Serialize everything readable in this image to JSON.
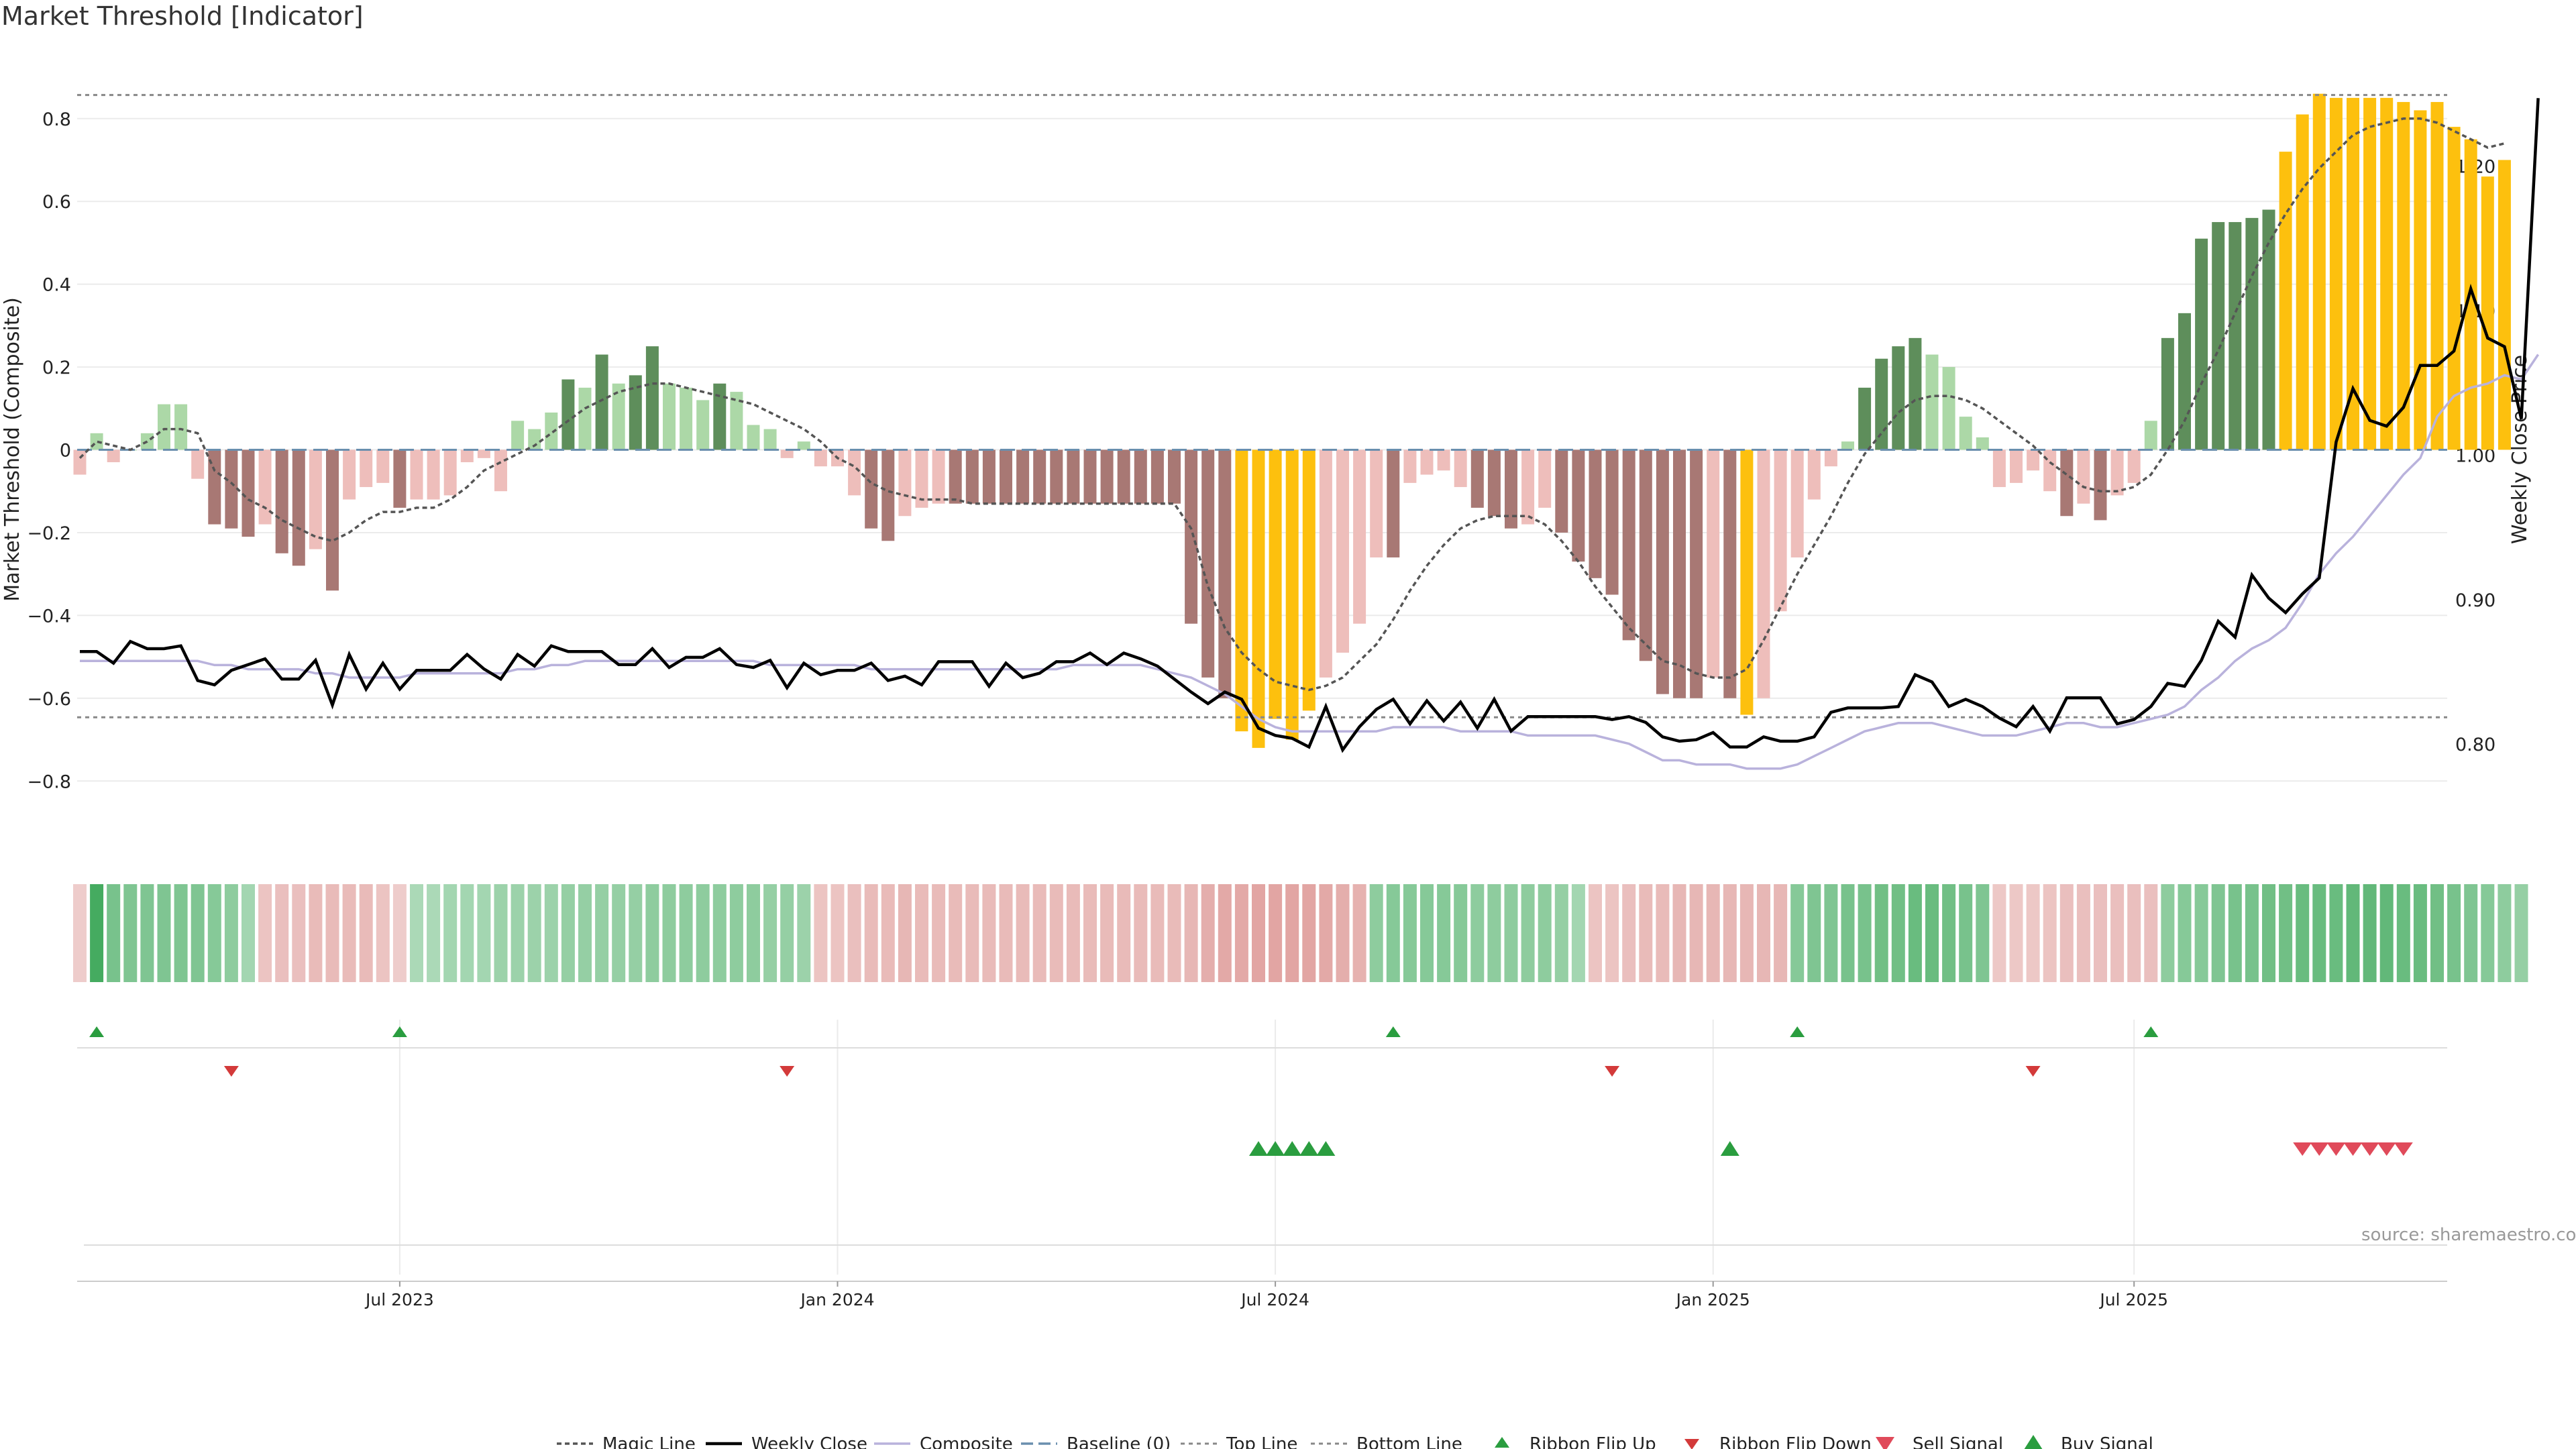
{
  "chart_data": {
    "type": "bar",
    "title": "Market Threshold [Indicator]",
    "ylabel": "Market Threshold (Composite)",
    "y2label": "Weekly Close Price",
    "ylim": [
      -0.96,
      0.96
    ],
    "y2lim": [
      0.7286,
      1.2787
    ],
    "yticks": [
      0.8,
      0.6,
      0.4,
      0.2,
      0,
      -0.2,
      -0.4,
      -0.6,
      -0.8
    ],
    "ytick_labels": [
      "0.8",
      "0.6",
      "0.4",
      "0.2",
      "0",
      "−0.2",
      "−0.4",
      "−0.6",
      "−0.8"
    ],
    "y2ticks": [
      1.2,
      1.1,
      1.0,
      0.9,
      0.8
    ],
    "y2tick_labels": [
      "1.20",
      "1.10",
      "1.00",
      "0.90",
      "0.80"
    ],
    "xtick_labels": [
      "Jul 2023",
      "Jan 2024",
      "Jul 2024",
      "Jan 2025",
      "Jul 2025"
    ],
    "xtick_week_index": [
      19,
      45,
      71,
      97,
      122
    ],
    "weeks": 143,
    "top_line": 0.857,
    "bottom_line": -0.646,
    "source": "source: sharemaestro.com",
    "composite_bars": [
      -0.06,
      0.04,
      -0.03,
      0.0,
      0.04,
      0.11,
      0.11,
      -0.07,
      -0.18,
      -0.19,
      -0.21,
      -0.18,
      -0.25,
      -0.28,
      -0.24,
      -0.34,
      -0.12,
      -0.09,
      -0.08,
      -0.14,
      -0.12,
      -0.12,
      -0.11,
      -0.03,
      -0.02,
      -0.1,
      0.07,
      0.05,
      0.09,
      0.17,
      0.15,
      0.23,
      0.16,
      0.18,
      0.25,
      0.16,
      0.15,
      0.12,
      0.16,
      0.14,
      0.06,
      0.05,
      -0.02,
      0.02,
      -0.04,
      -0.04,
      -0.11,
      -0.19,
      -0.22,
      -0.16,
      -0.14,
      -0.13,
      -0.13,
      -0.13,
      -0.13,
      -0.13,
      -0.13,
      -0.13,
      -0.13,
      -0.13,
      -0.13,
      -0.13,
      -0.13,
      -0.13,
      -0.13,
      -0.13,
      -0.42,
      -0.55,
      -0.6,
      -0.68,
      -0.72,
      -0.65,
      -0.7,
      -0.63,
      -0.55,
      -0.49,
      -0.42,
      -0.26,
      -0.26,
      -0.08,
      -0.06,
      -0.05,
      -0.09,
      -0.14,
      -0.16,
      -0.19,
      -0.18,
      -0.14,
      -0.2,
      -0.27,
      -0.31,
      -0.35,
      -0.46,
      -0.51,
      -0.59,
      -0.6,
      -0.6,
      -0.55,
      -0.6,
      -0.64,
      -0.6,
      -0.39,
      -0.26,
      -0.12,
      -0.04,
      0.02,
      0.15,
      0.22,
      0.25,
      0.27,
      0.23,
      0.2,
      0.08,
      0.03,
      -0.09,
      -0.08,
      -0.05,
      -0.1,
      -0.16,
      -0.13,
      -0.17,
      -0.11,
      -0.08,
      0.07,
      0.27,
      0.33,
      0.51,
      0.55,
      0.55,
      0.56,
      0.58,
      0.72,
      0.81,
      0.86,
      0.85,
      0.85,
      0.85,
      0.85,
      0.84,
      0.82,
      0.84,
      0.78,
      0.75,
      0.66,
      0.7
    ],
    "magic_line": [
      -0.02,
      0.02,
      0.01,
      0.0,
      0.02,
      0.05,
      0.05,
      0.04,
      -0.05,
      -0.08,
      -0.12,
      -0.14,
      -0.17,
      -0.19,
      -0.21,
      -0.22,
      -0.2,
      -0.17,
      -0.15,
      -0.15,
      -0.14,
      -0.14,
      -0.12,
      -0.09,
      -0.05,
      -0.03,
      -0.01,
      0.01,
      0.04,
      0.07,
      0.1,
      0.12,
      0.14,
      0.15,
      0.16,
      0.16,
      0.15,
      0.14,
      0.13,
      0.12,
      0.11,
      0.09,
      0.07,
      0.05,
      0.02,
      -0.02,
      -0.04,
      -0.08,
      -0.1,
      -0.11,
      -0.12,
      -0.12,
      -0.12,
      -0.13,
      -0.13,
      -0.13,
      -0.13,
      -0.13,
      -0.13,
      -0.13,
      -0.13,
      -0.13,
      -0.13,
      -0.13,
      -0.13,
      -0.13,
      -0.19,
      -0.33,
      -0.43,
      -0.49,
      -0.53,
      -0.56,
      -0.57,
      -0.58,
      -0.57,
      -0.55,
      -0.51,
      -0.47,
      -0.41,
      -0.34,
      -0.28,
      -0.23,
      -0.19,
      -0.17,
      -0.16,
      -0.16,
      -0.16,
      -0.18,
      -0.22,
      -0.27,
      -0.33,
      -0.38,
      -0.43,
      -0.47,
      -0.51,
      -0.52,
      -0.54,
      -0.55,
      -0.55,
      -0.53,
      -0.46,
      -0.38,
      -0.3,
      -0.23,
      -0.16,
      -0.08,
      -0.01,
      0.04,
      0.09,
      0.12,
      0.13,
      0.13,
      0.12,
      0.1,
      0.07,
      0.04,
      0.01,
      -0.03,
      -0.06,
      -0.09,
      -0.1,
      -0.1,
      -0.09,
      -0.06,
      0.0,
      0.07,
      0.16,
      0.24,
      0.33,
      0.42,
      0.5,
      0.57,
      0.63,
      0.68,
      0.72,
      0.76,
      0.78,
      0.79,
      0.8,
      0.8,
      0.79,
      0.77,
      0.75,
      0.73,
      0.74
    ],
    "composite_line": [
      -0.51,
      -0.51,
      -0.51,
      -0.51,
      -0.51,
      -0.51,
      -0.51,
      -0.51,
      -0.52,
      -0.52,
      -0.53,
      -0.53,
      -0.53,
      -0.53,
      -0.54,
      -0.54,
      -0.55,
      -0.55,
      -0.55,
      -0.55,
      -0.54,
      -0.54,
      -0.54,
      -0.54,
      -0.54,
      -0.54,
      -0.53,
      -0.53,
      -0.52,
      -0.52,
      -0.51,
      -0.51,
      -0.51,
      -0.51,
      -0.51,
      -0.51,
      -0.51,
      -0.51,
      -0.51,
      -0.51,
      -0.51,
      -0.52,
      -0.52,
      -0.52,
      -0.52,
      -0.52,
      -0.52,
      -0.53,
      -0.53,
      -0.53,
      -0.53,
      -0.53,
      -0.53,
      -0.53,
      -0.53,
      -0.53,
      -0.53,
      -0.53,
      -0.53,
      -0.52,
      -0.52,
      -0.52,
      -0.52,
      -0.52,
      -0.53,
      -0.54,
      -0.55,
      -0.57,
      -0.59,
      -0.62,
      -0.65,
      -0.67,
      -0.68,
      -0.68,
      -0.68,
      -0.68,
      -0.68,
      -0.68,
      -0.67,
      -0.67,
      -0.67,
      -0.67,
      -0.68,
      -0.68,
      -0.68,
      -0.68,
      -0.69,
      -0.69,
      -0.69,
      -0.69,
      -0.69,
      -0.7,
      -0.71,
      -0.73,
      -0.75,
      -0.75,
      -0.76,
      -0.76,
      -0.76,
      -0.77,
      -0.77,
      -0.77,
      -0.76,
      -0.74,
      -0.72,
      -0.7,
      -0.68,
      -0.67,
      -0.66,
      -0.66,
      -0.66,
      -0.67,
      -0.68,
      -0.69,
      -0.69,
      -0.69,
      -0.68,
      -0.67,
      -0.66,
      -0.66,
      -0.67,
      -0.67,
      -0.66,
      -0.65,
      -0.64,
      -0.62,
      -0.58,
      -0.55,
      -0.51,
      -0.48,
      -0.46,
      -0.43,
      -0.37,
      -0.3,
      -0.25,
      -0.21,
      -0.16,
      -0.11,
      -0.06,
      -0.02,
      0.08,
      0.13,
      0.15,
      0.16,
      0.18,
      0.17,
      0.23
    ],
    "weekly_close": [
      0.864,
      0.864,
      0.856,
      0.871,
      0.866,
      0.866,
      0.868,
      0.844,
      0.841,
      0.851,
      0.855,
      0.859,
      0.845,
      0.845,
      0.858,
      0.827,
      0.862,
      0.838,
      0.856,
      0.838,
      0.851,
      0.851,
      0.851,
      0.862,
      0.852,
      0.845,
      0.862,
      0.854,
      0.868,
      0.864,
      0.864,
      0.864,
      0.855,
      0.855,
      0.866,
      0.853,
      0.86,
      0.86,
      0.866,
      0.855,
      0.853,
      0.858,
      0.839,
      0.856,
      0.848,
      0.851,
      0.851,
      0.856,
      0.844,
      0.847,
      0.841,
      0.857,
      0.857,
      0.857,
      0.84,
      0.856,
      0.846,
      0.849,
      0.857,
      0.857,
      0.863,
      0.855,
      0.863,
      0.859,
      0.854,
      0.845,
      0.836,
      0.828,
      0.836,
      0.831,
      0.811,
      0.806,
      0.804,
      0.798,
      0.826,
      0.796,
      0.812,
      0.824,
      0.831,
      0.814,
      0.83,
      0.816,
      0.829,
      0.811,
      0.831,
      0.809,
      0.819,
      0.819,
      0.819,
      0.819,
      0.819,
      0.817,
      0.819,
      0.815,
      0.805,
      0.802,
      0.803,
      0.808,
      0.798,
      0.798,
      0.805,
      0.802,
      0.802,
      0.805,
      0.822,
      0.825,
      0.825,
      0.825,
      0.826,
      0.848,
      0.843,
      0.826,
      0.831,
      0.826,
      0.818,
      0.812,
      0.826,
      0.809,
      0.832,
      0.832,
      0.832,
      0.814,
      0.817,
      0.826,
      0.842,
      0.84,
      0.858,
      0.885,
      0.874,
      0.917,
      0.901,
      0.891,
      0.904,
      0.915,
      1.009,
      1.046,
      1.024,
      1.02,
      1.033,
      1.062,
      1.062,
      1.072,
      1.115,
      1.081,
      1.075,
      1.025,
      1.247
    ]
  },
  "ribbon": {
    "colors": {
      "green": "#3ea85a",
      "red": "#d98b88"
    },
    "values": [
      -0.25,
      0.95,
      0.6,
      0.55,
      0.55,
      0.55,
      0.55,
      0.55,
      0.5,
      0.45,
      0.3,
      -0.35,
      -0.4,
      -0.4,
      -0.45,
      -0.45,
      -0.45,
      -0.45,
      -0.35,
      -0.25,
      0.25,
      0.25,
      0.3,
      0.3,
      0.3,
      0.35,
      0.35,
      0.35,
      0.35,
      0.4,
      0.4,
      0.4,
      0.4,
      0.4,
      0.45,
      0.45,
      0.45,
      0.45,
      0.45,
      0.45,
      0.45,
      0.4,
      0.4,
      0.35,
      -0.35,
      -0.35,
      -0.4,
      -0.45,
      -0.45,
      -0.5,
      -0.45,
      -0.45,
      -0.45,
      -0.45,
      -0.45,
      -0.45,
      -0.45,
      -0.45,
      -0.45,
      -0.45,
      -0.45,
      -0.45,
      -0.45,
      -0.45,
      -0.45,
      -0.45,
      -0.5,
      -0.6,
      -0.65,
      -0.65,
      -0.7,
      -0.7,
      -0.7,
      -0.7,
      -0.65,
      -0.6,
      -0.55,
      0.45,
      0.5,
      0.5,
      0.5,
      0.5,
      0.5,
      0.45,
      0.45,
      0.45,
      0.45,
      0.45,
      0.4,
      0.3,
      -0.35,
      -0.35,
      -0.4,
      -0.45,
      -0.45,
      -0.5,
      -0.5,
      -0.5,
      -0.5,
      -0.5,
      -0.5,
      -0.5,
      0.5,
      0.55,
      0.55,
      0.6,
      0.6,
      0.65,
      0.65,
      0.7,
      0.7,
      0.65,
      0.6,
      0.55,
      -0.3,
      -0.3,
      -0.3,
      -0.35,
      -0.4,
      -0.4,
      -0.4,
      -0.4,
      -0.4,
      -0.4,
      0.45,
      0.5,
      0.5,
      0.55,
      0.6,
      0.6,
      0.65,
      0.65,
      0.7,
      0.7,
      0.7,
      0.75,
      0.75,
      0.75,
      0.7,
      0.7,
      0.65,
      0.6,
      0.55,
      0.5,
      0.45,
      0.4
    ]
  },
  "signals": {
    "colors": {
      "up": "#2a9d3f",
      "down": "#d33a3a",
      "buy": "#2a9d3f",
      "sell": "#e04a5a"
    },
    "ribbon_flip_up": [
      1,
      19,
      78,
      102,
      123
    ],
    "ribbon_flip_down": [
      9,
      42,
      91,
      116
    ],
    "buy_signal": [
      70,
      71,
      72,
      73,
      74,
      98
    ],
    "sell_signal": [
      132,
      133,
      134,
      135,
      136,
      137,
      138
    ]
  },
  "colors": {
    "bar_dark_green": "#5e8e5b",
    "bar_light_green": "#acd8a7",
    "bar_dark_red": "#a87874",
    "bar_light_red": "#eebebb",
    "bar_yellow": "#fdc00e",
    "close_line": "#000000",
    "composite_line": "#b9b2dc",
    "magic_line": "#555555",
    "baseline": "#6a8fae",
    "threshold": "#888888",
    "grid": "#ebebeb"
  },
  "legend": [
    {
      "key": "magic",
      "label": "Magic Line"
    },
    {
      "key": "close",
      "label": "Weekly Close"
    },
    {
      "key": "composite",
      "label": "Composite"
    },
    {
      "key": "baseline",
      "label": "Baseline (0)"
    },
    {
      "key": "top",
      "label": "Top Line"
    },
    {
      "key": "bottom",
      "label": "Bottom Line"
    },
    {
      "key": "flipup",
      "label": "Ribbon Flip Up"
    },
    {
      "key": "flipdown",
      "label": "Ribbon Flip Down"
    },
    {
      "key": "sell",
      "label": "Sell Signal"
    },
    {
      "key": "buy",
      "label": "Buy Signal"
    }
  ]
}
